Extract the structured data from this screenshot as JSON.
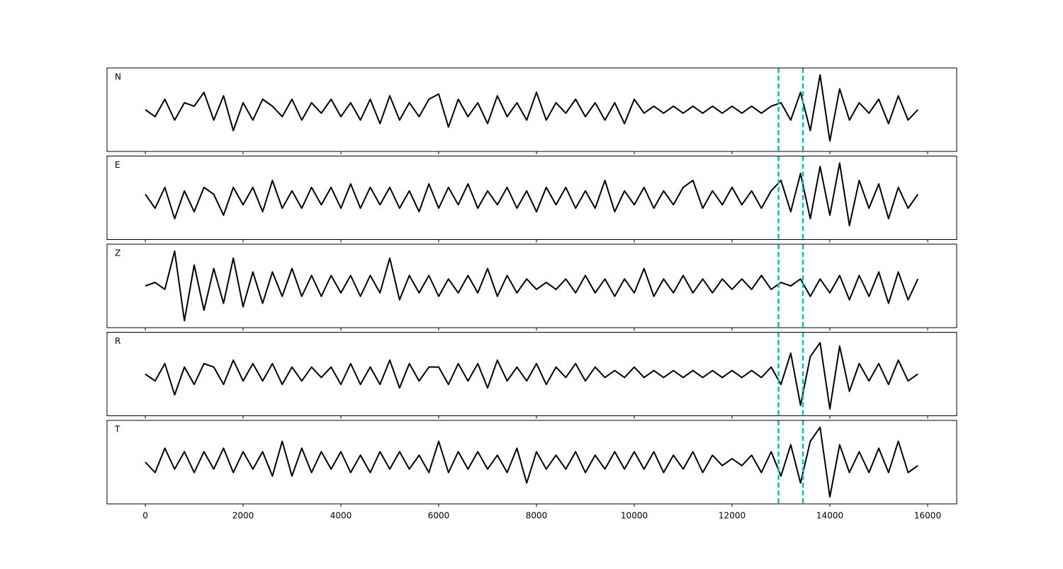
{
  "chart_data": {
    "type": "line",
    "subplots": true,
    "x": [
      0,
      200,
      400,
      600,
      800,
      1000,
      1200,
      1400,
      1600,
      1800,
      2000,
      2200,
      2400,
      2600,
      2800,
      3000,
      3200,
      3400,
      3600,
      3800,
      4000,
      4200,
      4400,
      4600,
      4800,
      5000,
      5200,
      5400,
      5600,
      5800,
      6000,
      6200,
      6400,
      6600,
      6800,
      7000,
      7200,
      7400,
      7600,
      7800,
      8000,
      8200,
      8400,
      8600,
      8800,
      9000,
      9200,
      9400,
      9600,
      9800,
      10000,
      10200,
      10400,
      10600,
      10800,
      11000,
      11200,
      11400,
      11600,
      11800,
      12000,
      12200,
      12400,
      12600,
      12800,
      13000,
      13200,
      13400,
      13600,
      13800,
      14000,
      14200,
      14400,
      14600,
      14800,
      15000,
      15200,
      15400,
      15600,
      15800
    ],
    "series": [
      {
        "name": "N",
        "color": "#000000",
        "values": [
          0.0,
          -0.2,
          0.3,
          -0.3,
          0.2,
          0.1,
          0.5,
          -0.3,
          0.4,
          -0.6,
          0.2,
          -0.3,
          0.3,
          0.1,
          -0.2,
          0.3,
          -0.3,
          0.2,
          -0.1,
          0.3,
          -0.2,
          0.2,
          -0.3,
          0.3,
          -0.4,
          0.4,
          -0.3,
          0.2,
          -0.2,
          0.3,
          0.45,
          -0.5,
          0.3,
          -0.2,
          0.2,
          -0.4,
          0.4,
          -0.2,
          0.2,
          -0.3,
          0.5,
          -0.3,
          0.2,
          -0.1,
          0.3,
          -0.2,
          0.2,
          -0.3,
          0.2,
          -0.4,
          0.3,
          -0.1,
          0.1,
          -0.1,
          0.1,
          -0.1,
          0.1,
          -0.1,
          0.1,
          -0.1,
          0.1,
          -0.1,
          0.1,
          -0.1,
          0.1,
          0.2,
          -0.3,
          0.5,
          -0.6,
          1.0,
          -0.9,
          0.6,
          -0.3,
          0.2,
          -0.1,
          0.3,
          -0.4,
          0.4,
          -0.3,
          0.0
        ]
      },
      {
        "name": "E",
        "color": "#000000",
        "values": [
          0.1,
          -0.3,
          0.3,
          -0.6,
          0.2,
          -0.4,
          0.3,
          0.1,
          -0.5,
          0.3,
          -0.2,
          0.3,
          -0.4,
          0.5,
          -0.3,
          0.2,
          -0.3,
          0.3,
          -0.2,
          0.3,
          -0.3,
          0.4,
          -0.3,
          0.3,
          -0.2,
          0.3,
          -0.3,
          0.2,
          -0.4,
          0.4,
          -0.3,
          0.3,
          -0.2,
          0.4,
          -0.3,
          0.2,
          -0.2,
          0.3,
          -0.3,
          0.2,
          -0.4,
          0.3,
          -0.2,
          0.3,
          -0.3,
          0.2,
          -0.3,
          0.5,
          -0.4,
          0.2,
          -0.2,
          0.3,
          -0.3,
          0.2,
          -0.2,
          0.3,
          0.5,
          -0.3,
          0.2,
          -0.2,
          0.3,
          -0.2,
          0.2,
          -0.3,
          0.2,
          0.5,
          -0.4,
          0.7,
          -0.6,
          0.9,
          -0.5,
          1.0,
          -0.8,
          0.5,
          -0.3,
          0.4,
          -0.6,
          0.3,
          -0.3,
          0.1
        ]
      },
      {
        "name": "Z",
        "color": "#000000",
        "values": [
          0.0,
          0.1,
          -0.1,
          1.0,
          -1.0,
          0.6,
          -0.7,
          0.5,
          -0.5,
          0.8,
          -0.6,
          0.4,
          -0.5,
          0.4,
          -0.3,
          0.5,
          -0.3,
          0.3,
          -0.3,
          0.3,
          -0.2,
          0.3,
          -0.3,
          0.3,
          -0.2,
          0.8,
          -0.4,
          0.3,
          -0.2,
          0.3,
          -0.3,
          0.2,
          -0.2,
          0.3,
          -0.2,
          0.5,
          -0.3,
          0.3,
          -0.2,
          0.2,
          -0.1,
          0.1,
          -0.1,
          0.2,
          -0.2,
          0.3,
          -0.2,
          0.2,
          -0.3,
          0.2,
          -0.2,
          0.5,
          -0.3,
          0.2,
          -0.2,
          0.3,
          -0.2,
          0.2,
          -0.2,
          0.2,
          -0.1,
          0.2,
          -0.1,
          0.3,
          -0.1,
          0.1,
          0.0,
          0.2,
          -0.3,
          0.2,
          -0.2,
          0.3,
          -0.4,
          0.3,
          -0.3,
          0.4,
          -0.5,
          0.4,
          -0.4,
          0.2
        ]
      },
      {
        "name": "R",
        "color": "#000000",
        "values": [
          0.0,
          -0.2,
          0.3,
          -0.6,
          0.2,
          -0.3,
          0.3,
          0.2,
          -0.3,
          0.4,
          -0.2,
          0.3,
          -0.2,
          0.3,
          -0.3,
          0.2,
          -0.2,
          0.2,
          -0.1,
          0.2,
          -0.3,
          0.3,
          -0.3,
          0.2,
          -0.3,
          0.4,
          -0.4,
          0.3,
          -0.2,
          0.2,
          0.2,
          -0.3,
          0.3,
          -0.2,
          0.3,
          -0.4,
          0.4,
          -0.2,
          0.2,
          -0.2,
          0.3,
          -0.3,
          0.2,
          -0.1,
          0.3,
          -0.2,
          0.2,
          -0.1,
          0.1,
          -0.1,
          0.2,
          -0.1,
          0.1,
          -0.1,
          0.1,
          -0.1,
          0.1,
          -0.1,
          0.1,
          -0.1,
          0.1,
          -0.1,
          0.1,
          -0.1,
          0.2,
          -0.3,
          0.6,
          -0.9,
          0.5,
          0.9,
          -1.0,
          0.8,
          -0.5,
          0.3,
          -0.2,
          0.3,
          -0.3,
          0.4,
          -0.2,
          0.0
        ]
      },
      {
        "name": "T",
        "color": "#000000",
        "values": [
          0.0,
          -0.3,
          0.4,
          -0.2,
          0.3,
          -0.3,
          0.3,
          -0.2,
          0.4,
          -0.3,
          0.3,
          -0.2,
          0.3,
          -0.4,
          0.6,
          -0.4,
          0.4,
          -0.3,
          0.3,
          -0.2,
          0.3,
          -0.3,
          0.2,
          -0.3,
          0.3,
          -0.2,
          0.3,
          -0.2,
          0.2,
          -0.3,
          0.6,
          -0.3,
          0.3,
          -0.2,
          0.3,
          -0.2,
          0.2,
          -0.3,
          0.4,
          -0.6,
          0.3,
          -0.2,
          0.2,
          -0.2,
          0.3,
          -0.3,
          0.2,
          -0.2,
          0.3,
          -0.2,
          0.3,
          -0.2,
          0.3,
          -0.3,
          0.2,
          -0.2,
          0.3,
          -0.3,
          0.2,
          -0.1,
          0.1,
          -0.1,
          0.2,
          -0.3,
          0.3,
          -0.4,
          0.5,
          -0.6,
          0.6,
          1.0,
          -1.0,
          0.5,
          -0.3,
          0.3,
          -0.3,
          0.4,
          -0.3,
          0.6,
          -0.3,
          -0.1
        ]
      }
    ],
    "xlim": [
      -783,
      16594
    ],
    "xticks": [
      0,
      2000,
      4000,
      6000,
      8000,
      10000,
      12000,
      14000,
      16000
    ],
    "ylim": [
      -1.2,
      1.2
    ],
    "vlines": {
      "x": [
        12950,
        13450
      ],
      "color": "#00c0b0",
      "style": "dashed"
    }
  }
}
